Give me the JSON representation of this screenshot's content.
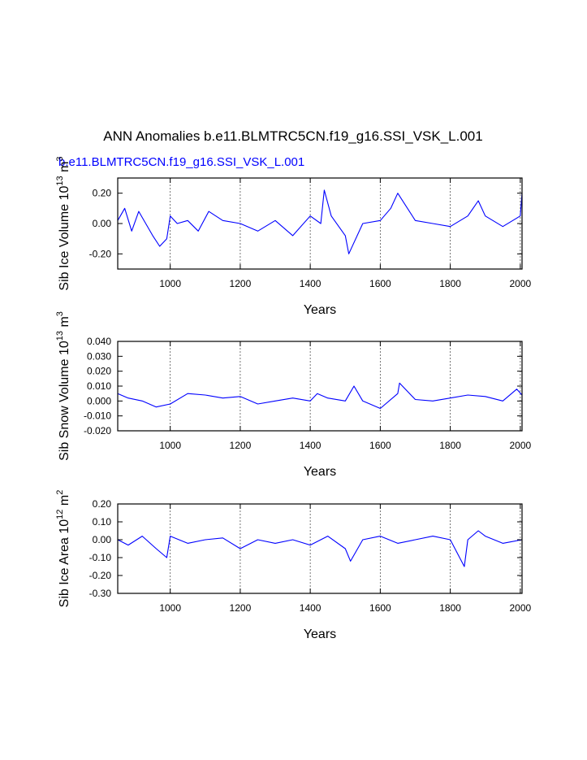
{
  "figure": {
    "title": "ANN Anomalies b.e11.BLMTRC5CN.f19_g16.SSI_VSK_L.001",
    "subtitle": "b.e11.BLMTRC5CN.f19_g16.SSI_VSK_L.001",
    "series_color": "#0000ff"
  },
  "chart_data": [
    {
      "type": "line",
      "xlabel": "Years",
      "ylabel": "Sib Ice Volume 10",
      "ylabel_sup1": "13",
      "ylabel_mid": " m",
      "ylabel_sup2": "3",
      "xlim": [
        850,
        2005
      ],
      "ylim": [
        -0.3,
        0.3
      ],
      "xticks": [
        1000,
        1200,
        1400,
        1600,
        1800,
        2000
      ],
      "xtick_labels": [
        "1000",
        "1200",
        "1400",
        "1600",
        "1800",
        "2000"
      ],
      "yticks": [
        0.2,
        0.0,
        -0.2
      ],
      "ytick_labels": [
        "0.20",
        "0.00",
        "-0.20"
      ],
      "grid": "dashed vertical at x ticks",
      "series": [
        {
          "x": [
            850,
            870,
            890,
            910,
            930,
            950,
            970,
            990,
            1000,
            1020,
            1050,
            1080,
            1110,
            1150,
            1200,
            1250,
            1300,
            1350,
            1400,
            1430,
            1440,
            1460,
            1500,
            1510,
            1550,
            1600,
            1630,
            1650,
            1700,
            1750,
            1800,
            1850,
            1880,
            1900,
            1950,
            2000,
            2005
          ],
          "y": [
            0.02,
            0.1,
            -0.05,
            0.08,
            0.0,
            -0.08,
            -0.15,
            -0.1,
            0.05,
            0.0,
            0.02,
            -0.05,
            0.08,
            0.02,
            0.0,
            -0.05,
            0.02,
            -0.08,
            0.05,
            0.0,
            0.22,
            0.05,
            -0.08,
            -0.2,
            0.0,
            0.02,
            0.1,
            0.2,
            0.02,
            0.0,
            -0.02,
            0.05,
            0.15,
            0.05,
            -0.02,
            0.05,
            0.2
          ]
        }
      ]
    },
    {
      "type": "line",
      "xlabel": "Years",
      "ylabel": "Sib Snow Volume 10",
      "ylabel_sup1": "13",
      "ylabel_mid": " m",
      "ylabel_sup2": "3",
      "xlim": [
        850,
        2005
      ],
      "ylim": [
        -0.02,
        0.04
      ],
      "xticks": [
        1000,
        1200,
        1400,
        1600,
        1800,
        2000
      ],
      "xtick_labels": [
        "1000",
        "1200",
        "1400",
        "1600",
        "1800",
        "2000"
      ],
      "yticks": [
        0.04,
        0.03,
        0.02,
        0.01,
        0.0,
        -0.01,
        -0.02
      ],
      "ytick_labels": [
        "0.040",
        "0.030",
        "0.020",
        "0.010",
        "0.000",
        "-0.010",
        "-0.020"
      ],
      "grid": "dashed vertical at x ticks",
      "series": [
        {
          "x": [
            850,
            880,
            920,
            960,
            1000,
            1050,
            1100,
            1150,
            1200,
            1250,
            1300,
            1350,
            1400,
            1420,
            1450,
            1500,
            1525,
            1550,
            1600,
            1650,
            1655,
            1700,
            1750,
            1800,
            1850,
            1900,
            1950,
            1990,
            2005
          ],
          "y": [
            0.005,
            0.002,
            0.0,
            -0.004,
            -0.002,
            0.005,
            0.004,
            0.002,
            0.003,
            -0.002,
            0.0,
            0.002,
            0.0,
            0.005,
            0.002,
            0.0,
            0.01,
            0.0,
            -0.005,
            0.005,
            0.012,
            0.001,
            0.0,
            0.002,
            0.004,
            0.003,
            0.0,
            0.008,
            0.004
          ]
        }
      ]
    },
    {
      "type": "line",
      "xlabel": "Years",
      "ylabel": "Sib Ice Area 10",
      "ylabel_sup1": "12",
      "ylabel_mid": " m",
      "ylabel_sup2": "2",
      "xlim": [
        850,
        2005
      ],
      "ylim": [
        -0.3,
        0.2
      ],
      "xticks": [
        1000,
        1200,
        1400,
        1600,
        1800,
        2000
      ],
      "xtick_labels": [
        "1000",
        "1200",
        "1400",
        "1600",
        "1800",
        "2000"
      ],
      "yticks": [
        0.2,
        0.1,
        0.0,
        -0.1,
        -0.2,
        -0.3
      ],
      "ytick_labels": [
        "0.20",
        "0.10",
        "0.00",
        "-0.10",
        "-0.20",
        "-0.30"
      ],
      "grid": "dashed vertical at x ticks",
      "series": [
        {
          "x": [
            850,
            880,
            920,
            960,
            990,
            1000,
            1050,
            1100,
            1150,
            1200,
            1250,
            1300,
            1350,
            1400,
            1450,
            1500,
            1515,
            1550,
            1600,
            1650,
            1700,
            1750,
            1800,
            1840,
            1850,
            1880,
            1900,
            1950,
            2005
          ],
          "y": [
            0.0,
            -0.03,
            0.02,
            -0.05,
            -0.1,
            0.02,
            -0.02,
            0.0,
            0.01,
            -0.05,
            0.0,
            -0.02,
            0.0,
            -0.03,
            0.02,
            -0.05,
            -0.12,
            0.0,
            0.02,
            -0.02,
            0.0,
            0.02,
            0.0,
            -0.15,
            0.0,
            0.05,
            0.02,
            -0.02,
            0.0
          ]
        }
      ]
    }
  ]
}
